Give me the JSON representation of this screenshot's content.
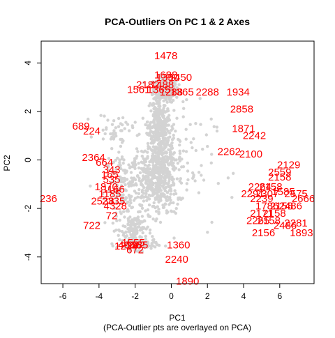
{
  "chart_data": {
    "type": "scatter",
    "title": "PCA-Outliers On PC 1 & 2 Axes",
    "xlabel": "PC1",
    "subtitle": "(PCA-Outlier pts are overlayed on PCA)",
    "ylabel": "PC2",
    "xlim": [
      -7.2,
      7.9
    ],
    "ylim": [
      -5.1,
      4.9
    ],
    "xticks": [
      "-6",
      "-4",
      "-2",
      "0",
      "2",
      "4",
      "6"
    ],
    "xtick_values": [
      -6,
      -4,
      -2,
      0,
      2,
      4,
      6
    ],
    "yticks": [
      "-4",
      "-2",
      "0",
      "2",
      "4"
    ],
    "ytick_values": [
      -4,
      -2,
      0,
      2,
      4
    ],
    "grid": false,
    "colors": {
      "points": "#d3d3d3",
      "labels": "#ff0000",
      "axis": "#000000"
    },
    "point_clusters": [
      {
        "cx": -0.3,
        "cy": 2.9,
        "sx": 0.35,
        "sy": 0.25,
        "n": 220
      },
      {
        "cx": -0.7,
        "cy": 1.6,
        "sx": 0.3,
        "sy": 0.5,
        "n": 180
      },
      {
        "cx": -0.6,
        "cy": 0.3,
        "sx": 0.45,
        "sy": 0.7,
        "n": 320
      },
      {
        "cx": -0.9,
        "cy": -1.0,
        "sx": 0.6,
        "sy": 0.6,
        "n": 300
      },
      {
        "cx": -2.6,
        "cy": -1.2,
        "sx": 0.5,
        "sy": 0.8,
        "n": 160
      },
      {
        "cx": -2.0,
        "cy": -2.9,
        "sx": 0.35,
        "sy": 0.35,
        "n": 120
      },
      {
        "cx": -1.8,
        "cy": -3.5,
        "sx": 0.5,
        "sy": 0.12,
        "n": 90
      },
      {
        "cx": -3.1,
        "cy": 1.3,
        "sx": 0.5,
        "sy": 0.3,
        "n": 40
      },
      {
        "cx": 0.0,
        "cy": -0.2,
        "sx": 1.2,
        "sy": 1.3,
        "n": 120
      }
    ],
    "outlier_labels": [
      {
        "x": -0.3,
        "y": 4.3,
        "text": "1478"
      },
      {
        "x": -0.3,
        "y": 3.5,
        "text": "1688"
      },
      {
        "x": -0.2,
        "y": 3.4,
        "text": "1350"
      },
      {
        "x": 0.5,
        "y": 3.4,
        "text": "1450"
      },
      {
        "x": -1.3,
        "y": 3.1,
        "text": "2182"
      },
      {
        "x": -0.5,
        "y": 3.1,
        "text": "1488"
      },
      {
        "x": -1.8,
        "y": 2.9,
        "text": "1561"
      },
      {
        "x": -0.7,
        "y": 2.9,
        "text": "1365"
      },
      {
        "x": 0.0,
        "y": 2.8,
        "text": "1288"
      },
      {
        "x": 0.6,
        "y": 2.8,
        "text": "1365"
      },
      {
        "x": 2.0,
        "y": 2.8,
        "text": "2288"
      },
      {
        "x": 3.7,
        "y": 2.8,
        "text": "1934"
      },
      {
        "x": 3.9,
        "y": 2.1,
        "text": "2858"
      },
      {
        "x": 4.0,
        "y": 1.3,
        "text": "1871"
      },
      {
        "x": 4.6,
        "y": 1.0,
        "text": "2242"
      },
      {
        "x": 3.2,
        "y": 0.35,
        "text": "2262"
      },
      {
        "x": 4.4,
        "y": 0.25,
        "text": "2100"
      },
      {
        "x": -5.0,
        "y": 1.4,
        "text": "689"
      },
      {
        "x": -4.4,
        "y": 1.2,
        "text": "224"
      },
      {
        "x": -4.3,
        "y": 0.1,
        "text": "2364"
      },
      {
        "x": -3.7,
        "y": -0.1,
        "text": "664"
      },
      {
        "x": -3.3,
        "y": -0.4,
        "text": "343"
      },
      {
        "x": -3.4,
        "y": -0.6,
        "text": "165"
      },
      {
        "x": -3.3,
        "y": -0.8,
        "text": "535"
      },
      {
        "x": -3.6,
        "y": -1.1,
        "text": "1870"
      },
      {
        "x": -3.2,
        "y": -1.2,
        "text": "1166"
      },
      {
        "x": -3.4,
        "y": -1.4,
        "text": "1185"
      },
      {
        "x": -3.2,
        "y": -1.7,
        "text": "2335"
      },
      {
        "x": -3.8,
        "y": -1.7,
        "text": "2538"
      },
      {
        "x": -3.1,
        "y": -1.9,
        "text": "4328"
      },
      {
        "x": -3.3,
        "y": -2.3,
        "text": "72"
      },
      {
        "x": -4.4,
        "y": -2.7,
        "text": "722"
      },
      {
        "x": -6.8,
        "y": -1.6,
        "text": "236"
      },
      {
        "x": -2.1,
        "y": -3.4,
        "text": "1555"
      },
      {
        "x": -1.9,
        "y": -3.5,
        "text": "1185"
      },
      {
        "x": -2.3,
        "y": -3.5,
        "text": "4666"
      },
      {
        "x": -2.5,
        "y": -3.55,
        "text": "1234"
      },
      {
        "x": -2.0,
        "y": -3.7,
        "text": "672"
      },
      {
        "x": 0.4,
        "y": -3.5,
        "text": "1360"
      },
      {
        "x": 0.3,
        "y": -4.1,
        "text": "2240"
      },
      {
        "x": 0.9,
        "y": -5.0,
        "text": "1890"
      },
      {
        "x": 6.5,
        "y": -0.2,
        "text": "2129"
      },
      {
        "x": 6.0,
        "y": -0.5,
        "text": "2559"
      },
      {
        "x": 6.0,
        "y": -0.7,
        "text": "2158"
      },
      {
        "x": 4.9,
        "y": -1.1,
        "text": "2264"
      },
      {
        "x": 5.5,
        "y": -1.1,
        "text": "2158"
      },
      {
        "x": 4.5,
        "y": -1.4,
        "text": "2291"
      },
      {
        "x": 5.3,
        "y": -1.4,
        "text": "2307"
      },
      {
        "x": 6.2,
        "y": -1.3,
        "text": "1585"
      },
      {
        "x": 6.9,
        "y": -1.4,
        "text": "2575"
      },
      {
        "x": 7.3,
        "y": -1.6,
        "text": "2666"
      },
      {
        "x": 5.0,
        "y": -1.6,
        "text": "2239"
      },
      {
        "x": 5.3,
        "y": -1.9,
        "text": "1786"
      },
      {
        "x": 6.1,
        "y": -1.9,
        "text": "2158"
      },
      {
        "x": 6.6,
        "y": -1.9,
        "text": "2486"
      },
      {
        "x": 5.0,
        "y": -2.2,
        "text": "2171"
      },
      {
        "x": 5.7,
        "y": -2.2,
        "text": "2158"
      },
      {
        "x": 4.8,
        "y": -2.5,
        "text": "2265"
      },
      {
        "x": 5.4,
        "y": -2.5,
        "text": "2158"
      },
      {
        "x": 6.9,
        "y": -2.6,
        "text": "2281"
      },
      {
        "x": 6.3,
        "y": -2.7,
        "text": "2486"
      },
      {
        "x": 5.1,
        "y": -3.0,
        "text": "2156"
      },
      {
        "x": 7.2,
        "y": -3.0,
        "text": "1893"
      }
    ]
  }
}
